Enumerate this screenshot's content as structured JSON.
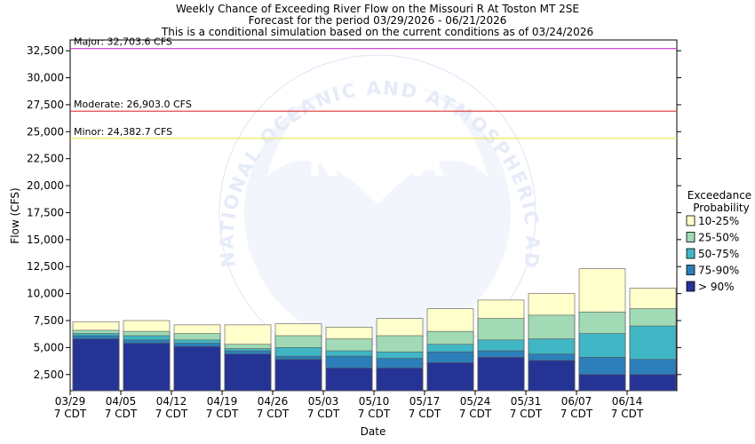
{
  "chart_data": {
    "type": "bar",
    "stacked": true,
    "title": "Weekly Chance of Exceeding River Flow on the Missouri R At Toston MT 2SE",
    "subtitle_lines": [
      "Forecast for the period 03/29/2026 - 06/21/2026",
      "This is a conditional simulation based on the current conditions as of 03/24/2026"
    ],
    "xlabel": "Date",
    "ylabel": "Flow (CFS)",
    "ylim": [
      1000,
      33500
    ],
    "yticks": [
      2500,
      5000,
      7500,
      10000,
      12500,
      15000,
      17500,
      20000,
      22500,
      25000,
      27500,
      30000,
      32500
    ],
    "ytick_labels": [
      "2,500",
      "5,000",
      "7,500",
      "10,000",
      "12,500",
      "15,000",
      "17,500",
      "20,000",
      "22,500",
      "25,000",
      "27,500",
      "30,000",
      "32,500"
    ],
    "categories": [
      "03/29",
      "04/05",
      "04/12",
      "04/19",
      "04/26",
      "05/03",
      "05/10",
      "05/17",
      "05/24",
      "05/31",
      "06/07",
      "06/14"
    ],
    "xtick_labels": [
      [
        "03/29",
        "7 CDT"
      ],
      [
        "04/05",
        "7 CDT"
      ],
      [
        "04/12",
        "7 CDT"
      ],
      [
        "04/19",
        "7 CDT"
      ],
      [
        "04/26",
        "7 CDT"
      ],
      [
        "05/03",
        "7 CDT"
      ],
      [
        "05/10",
        "7 CDT"
      ],
      [
        "05/17",
        "7 CDT"
      ],
      [
        "05/24",
        "7 CDT"
      ],
      [
        "05/31",
        "7 CDT"
      ],
      [
        "06/07",
        "7 CDT"
      ],
      [
        "06/14",
        "7 CDT"
      ]
    ],
    "series": [
      {
        "name": "> 90%",
        "color": "#253494",
        "values": [
          5800,
          5400,
          5100,
          4400,
          3900,
          3100,
          3100,
          3600,
          4100,
          3800,
          2500,
          2500
        ]
      },
      {
        "name": "75-90%",
        "color": "#2c7fb8",
        "values": [
          6100,
          5700,
          5400,
          4700,
          4200,
          4200,
          4000,
          4600,
          4700,
          4400,
          4100,
          3900
        ]
      },
      {
        "name": "50-75%",
        "color": "#41b6c4",
        "values": [
          6300,
          6100,
          5700,
          4900,
          5000,
          4700,
          4600,
          5300,
          5700,
          5800,
          6300,
          7000
        ]
      },
      {
        "name": "25-50%",
        "color": "#a1dab4",
        "values": [
          6600,
          6500,
          6300,
          5300,
          6100,
          5800,
          6100,
          6500,
          7700,
          8000,
          8300,
          8600
        ]
      },
      {
        "name": "10-25%",
        "color": "#ffffcc",
        "values": [
          7400,
          7500,
          7100,
          7100,
          7200,
          6900,
          7700,
          8600,
          9400,
          10000,
          12300,
          10500
        ]
      }
    ],
    "reference_lines": [
      {
        "label": "Major: 32,703.6 CFS",
        "value": 32703.6,
        "color": "#cc33cc"
      },
      {
        "label": "Moderate: 26,903.0 CFS",
        "value": 26903.0,
        "color": "#e03030"
      },
      {
        "label": "Minor: 24,382.7 CFS",
        "value": 24382.7,
        "color": "#e8e84a"
      }
    ],
    "legend": {
      "title_lines": [
        "Exceedance",
        "Probability"
      ],
      "placement": "right",
      "entries": [
        "10-25%",
        "25-50%",
        "50-75%",
        "75-90%",
        "> 90%"
      ]
    },
    "grid": false,
    "watermark": "NATIONAL OCEANIC AND ATMOSPHERIC ADMINISTRATION"
  }
}
